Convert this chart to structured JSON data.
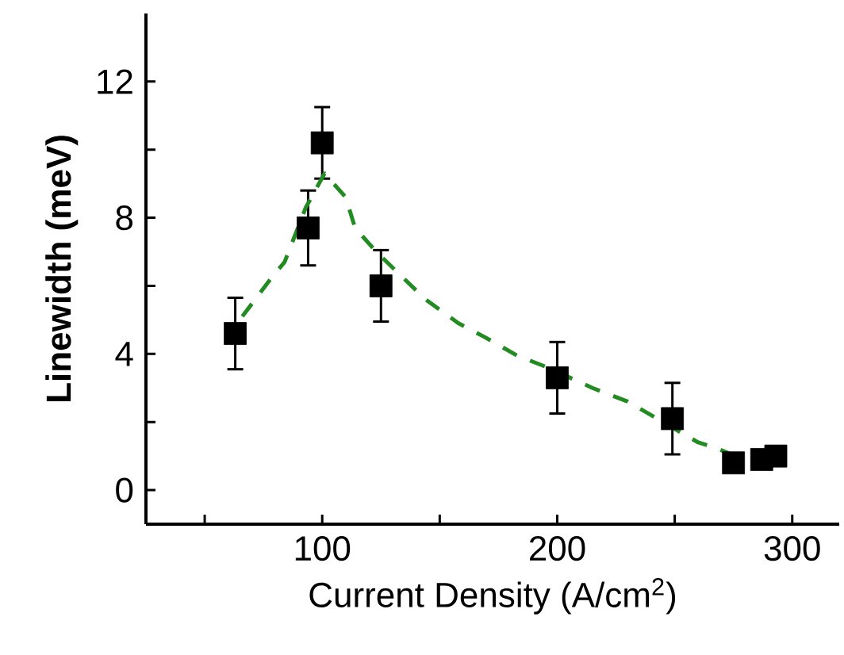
{
  "chart_data": {
    "type": "scatter",
    "xlabel": "Current Density (A/cm$^{2}$)",
    "ylabel": "Linewidth (meV)",
    "xlim": [
      25,
      320
    ],
    "ylim": [
      -1,
      14
    ],
    "xticks": [
      {
        "value": 50,
        "label": null
      },
      100,
      {
        "value": 150,
        "label": null
      },
      200,
      {
        "value": 250,
        "label": null
      },
      300
    ],
    "yticks": [
      0,
      {
        "value": 2,
        "label": null
      },
      4,
      {
        "value": 6,
        "label": null
      },
      8,
      {
        "value": 10,
        "label": null
      },
      12
    ],
    "marker": "square",
    "grid": false,
    "series": [
      {
        "color": "#000000",
        "x": [
          63,
          94,
          100,
          125,
          200,
          249,
          275,
          287,
          293
        ],
        "values": [
          4.6,
          7.7,
          10.2,
          6.0,
          3.3,
          2.1,
          0.8,
          0.9,
          1.0
        ],
        "errors": [
          1.05,
          1.1,
          1.05,
          1.05,
          1.05,
          1.05,
          null,
          null,
          null
        ]
      },
      {
        "type": "line",
        "color": "#228b22",
        "marker": "none",
        "line_style": "dashed",
        "x": [
          66,
          78,
          84,
          93,
          101,
          110,
          114,
          123,
          144,
          158,
          169,
          183,
          196,
          215,
          230,
          260,
          267,
          276
        ],
        "values": [
          5.1,
          6.2,
          6.7,
          8.3,
          9.3,
          8.6,
          7.7,
          7.0,
          5.6,
          4.9,
          4.5,
          3.95,
          3.6,
          3.0,
          2.6,
          1.4,
          1.25,
          1.0
        ]
      }
    ]
  }
}
